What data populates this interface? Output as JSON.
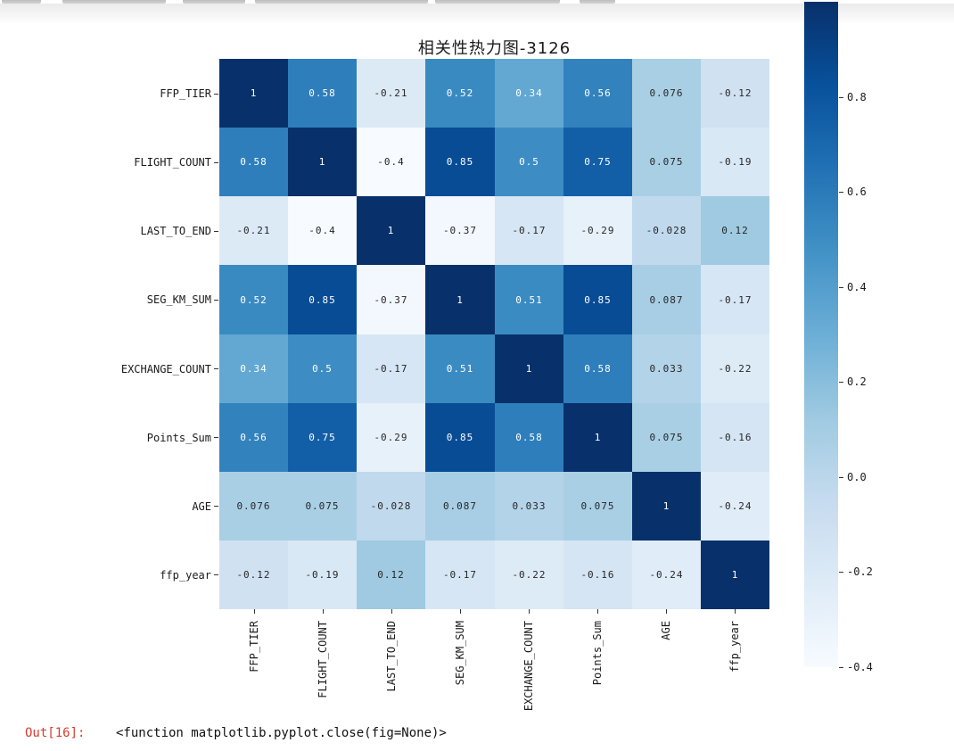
{
  "chart_data": {
    "type": "heatmap",
    "title": "相关性热力图-3126",
    "categories": [
      "FFP_TIER",
      "FLIGHT_COUNT",
      "LAST_TO_END",
      "SEG_KM_SUM",
      "EXCHANGE_COUNT",
      "Points_Sum",
      "AGE",
      "ffp_year"
    ],
    "matrix": [
      [
        1,
        0.58,
        -0.21,
        0.52,
        0.34,
        0.56,
        0.076,
        -0.12
      ],
      [
        0.58,
        1,
        -0.4,
        0.85,
        0.5,
        0.75,
        0.075,
        -0.19
      ],
      [
        -0.21,
        -0.4,
        1,
        -0.37,
        -0.17,
        -0.29,
        -0.028,
        0.12
      ],
      [
        0.52,
        0.85,
        -0.37,
        1,
        0.51,
        0.85,
        0.087,
        -0.17
      ],
      [
        0.34,
        0.5,
        -0.17,
        0.51,
        1,
        0.58,
        0.033,
        -0.22
      ],
      [
        0.56,
        0.75,
        -0.29,
        0.85,
        0.58,
        1,
        0.075,
        -0.16
      ],
      [
        0.076,
        0.075,
        -0.028,
        0.087,
        0.033,
        0.075,
        1,
        -0.24
      ],
      [
        -0.12,
        -0.19,
        0.12,
        -0.17,
        -0.22,
        -0.16,
        -0.24,
        1
      ]
    ],
    "colormap": "Blues",
    "colormap_anchors": [
      "#f7fbff",
      "#deebf7",
      "#c6dbef",
      "#9ecae1",
      "#6baed6",
      "#4292c6",
      "#2171b5",
      "#08519c",
      "#08306b"
    ],
    "vmin": -0.4,
    "vmax": 1.0,
    "legend_position": "right",
    "grid": false,
    "colorbar_ticks": [
      {
        "value": 0.8,
        "label": "0.8"
      },
      {
        "value": 0.6,
        "label": "0.6"
      },
      {
        "value": 0.4,
        "label": "0.4"
      },
      {
        "value": 0.2,
        "label": "0.2"
      },
      {
        "value": 0.0,
        "label": "0.0"
      },
      {
        "value": -0.2,
        "label": "-0.2"
      },
      {
        "value": -0.4,
        "label": "-0.4"
      }
    ],
    "annotation_text_dark": "#262626",
    "annotation_text_light": "#ffffff"
  },
  "output": {
    "prompt": "Out[16]:",
    "value": "<function matplotlib.pyplot.close(fig=None)>",
    "prompt_color": "#d63d2e"
  }
}
